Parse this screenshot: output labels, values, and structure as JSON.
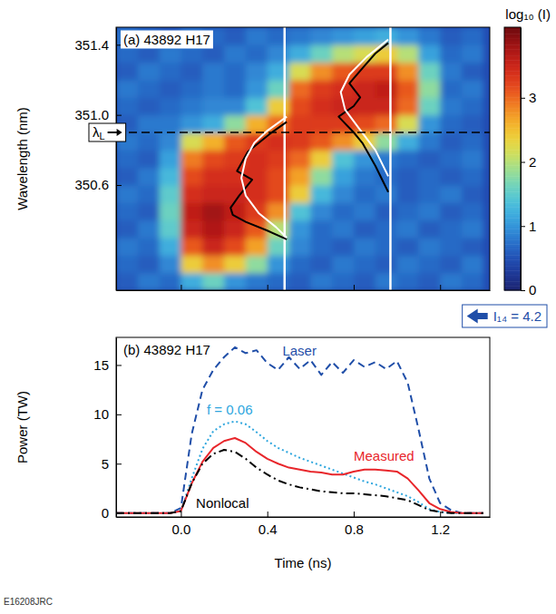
{
  "chart_data": [
    {
      "type": "heatmap",
      "title": "(a) 43892 H17",
      "ylabel": "Wavelength (nm)",
      "xlim": [
        -0.3,
        1.43
      ],
      "xticks": [
        0,
        0.4,
        0.8,
        1.2
      ],
      "ylim": [
        350.0,
        351.5
      ],
      "yticks": [
        350.6,
        {
          "value": 351,
          "label": "351.0"
        },
        351.4
      ],
      "tick_labels": "y",
      "x": [
        -0.25,
        -0.15,
        -0.05,
        0.05,
        0.15,
        0.25,
        0.35,
        0.45,
        0.55,
        0.65,
        0.75,
        0.85,
        0.95,
        1.05,
        1.15,
        1.25,
        1.35
      ],
      "y": [
        350.05,
        350.15,
        350.25,
        350.35,
        350.45,
        350.55,
        350.65,
        350.75,
        350.85,
        350.95,
        351.05,
        351.15,
        351.25,
        351.35,
        351.45
      ],
      "z": [
        [
          0.6,
          0.8,
          0.7,
          1.2,
          1.6,
          1.0,
          0.8,
          0.7,
          0.6,
          0.8,
          0.7,
          0.6,
          0.8,
          0.7,
          0.6,
          0.8,
          0.7
        ],
        [
          0.7,
          0.6,
          0.9,
          2.4,
          2.8,
          2.4,
          1.8,
          1.0,
          0.7,
          0.6,
          0.8,
          0.7,
          0.6,
          0.8,
          0.7,
          0.6,
          0.8
        ],
        [
          0.8,
          0.7,
          1.2,
          3.1,
          3.5,
          3.2,
          2.7,
          1.6,
          0.9,
          0.7,
          0.6,
          0.8,
          0.7,
          0.6,
          0.8,
          0.7,
          0.6
        ],
        [
          0.6,
          0.8,
          1.5,
          3.5,
          3.7,
          3.5,
          3.1,
          2.0,
          1.0,
          0.7,
          0.8,
          0.6,
          0.7,
          0.8,
          0.6,
          0.7,
          0.8
        ],
        [
          0.7,
          0.6,
          1.6,
          3.6,
          3.8,
          3.6,
          3.3,
          2.8,
          1.4,
          0.9,
          0.7,
          0.8,
          0.6,
          0.7,
          0.8,
          0.6,
          0.7
        ],
        [
          0.8,
          0.7,
          1.5,
          3.4,
          3.5,
          3.5,
          3.4,
          3.2,
          2.4,
          1.3,
          0.9,
          0.7,
          0.8,
          0.6,
          0.7,
          0.8,
          0.6
        ],
        [
          0.6,
          0.8,
          1.3,
          3.2,
          3.4,
          3.4,
          3.4,
          3.2,
          2.7,
          1.8,
          1.1,
          0.8,
          0.7,
          0.6,
          0.7,
          0.6,
          0.7
        ],
        [
          0.7,
          0.6,
          1.1,
          2.9,
          3.2,
          3.3,
          3.4,
          3.3,
          3.0,
          2.4,
          1.4,
          1.0,
          0.8,
          0.7,
          0.6,
          0.7,
          0.8
        ],
        [
          0.8,
          0.7,
          0.9,
          2.2,
          2.6,
          3.1,
          3.3,
          3.4,
          3.3,
          3.1,
          2.8,
          2.4,
          1.8,
          1.2,
          0.8,
          0.6,
          0.7
        ],
        [
          0.6,
          0.8,
          0.8,
          1.0,
          1.2,
          1.8,
          2.6,
          3.0,
          3.3,
          3.3,
          3.3,
          3.2,
          3.0,
          2.2,
          1.0,
          0.7,
          0.6
        ],
        [
          0.7,
          0.6,
          0.7,
          0.8,
          0.9,
          0.9,
          1.4,
          2.4,
          3.2,
          3.4,
          3.5,
          3.5,
          3.5,
          3.0,
          1.6,
          0.8,
          0.7
        ],
        [
          0.8,
          0.7,
          0.6,
          0.7,
          0.8,
          0.7,
          1.0,
          1.6,
          3.0,
          3.3,
          3.4,
          3.5,
          3.6,
          3.1,
          1.8,
          0.7,
          0.8
        ],
        [
          0.6,
          0.8,
          0.7,
          0.6,
          0.8,
          0.7,
          0.9,
          1.2,
          2.2,
          2.8,
          3.1,
          3.3,
          3.3,
          2.8,
          1.6,
          0.8,
          0.6
        ],
        [
          0.7,
          0.6,
          0.8,
          0.7,
          0.6,
          0.8,
          0.7,
          0.9,
          1.2,
          1.6,
          2.0,
          2.2,
          2.4,
          2.0,
          1.1,
          0.7,
          0.8
        ],
        [
          0.8,
          0.7,
          0.6,
          0.8,
          0.7,
          0.6,
          0.8,
          0.7,
          0.8,
          0.9,
          1.0,
          1.1,
          1.2,
          1.0,
          0.8,
          0.6,
          0.7
        ]
      ],
      "colorbar": {
        "label": "log₁₀ (I)",
        "range": [
          0,
          4.1
        ],
        "ticks": [
          0,
          1,
          2,
          3
        ]
      },
      "reference_line": {
        "label": "λL",
        "value": 350.9
      },
      "lineouts": {
        "times": [
          0.48,
          0.97
        ],
        "curves": [
          {
            "color": "black",
            "x": [
              0.49,
              0.4,
              0.3,
              0.24,
              0.23,
              0.27,
              0.33,
              0.26,
              0.31,
              0.41,
              0.49
            ],
            "y": [
              350.29,
              350.34,
              350.39,
              350.43,
              350.47,
              350.54,
              350.63,
              350.68,
              350.79,
              350.89,
              350.96
            ]
          },
          {
            "color": "white",
            "x": [
              0.49,
              0.44,
              0.36,
              0.3,
              0.28,
              0.3,
              0.34,
              0.4,
              0.49
            ],
            "y": [
              350.3,
              350.36,
              350.44,
              350.54,
              350.64,
              350.75,
              350.84,
              350.91,
              350.99
            ]
          },
          {
            "color": "black",
            "x": [
              0.96,
              0.9,
              0.84,
              0.8,
              0.73,
              0.8,
              0.83,
              0.78,
              0.85,
              0.9,
              0.96
            ],
            "y": [
              350.56,
              350.71,
              350.84,
              350.9,
              350.99,
              351.05,
              351.1,
              351.18,
              351.28,
              351.35,
              351.41
            ]
          },
          {
            "color": "white",
            "x": [
              0.96,
              0.9,
              0.82,
              0.76,
              0.74,
              0.78,
              0.86,
              0.96
            ],
            "y": [
              350.65,
              350.8,
              350.93,
              351.03,
              351.13,
              351.23,
              351.33,
              351.43
            ]
          }
        ]
      }
    },
    {
      "type": "line",
      "title": "(b) 43892 H17",
      "xlabel": "Time (ns)",
      "ylabel": "Power (TW)",
      "xlim": [
        -0.3,
        1.43
      ],
      "xticks": [
        {
          "value": 0,
          "label": "0.0"
        },
        0.4,
        0.8,
        1.2
      ],
      "ylim": [
        -0.4,
        17.8
      ],
      "yticks": [
        0,
        5,
        10,
        15
      ],
      "annotation": "I₁₄ = 4.2",
      "x": [
        -0.3,
        -0.25,
        -0.2,
        -0.15,
        -0.1,
        -0.05,
        0,
        0.05,
        0.1,
        0.15,
        0.2,
        0.25,
        0.3,
        0.35,
        0.4,
        0.45,
        0.5,
        0.55,
        0.6,
        0.65,
        0.7,
        0.75,
        0.8,
        0.85,
        0.9,
        0.95,
        1.0,
        1.05,
        1.1,
        1.15,
        1.2,
        1.25,
        1.3,
        1.35,
        1.4
      ],
      "series": [
        {
          "name": "Laser",
          "color": "#1f4ea8",
          "line_style": "dashed",
          "values": [
            0,
            0,
            0,
            0,
            0,
            0,
            0.5,
            8,
            12.5,
            14.5,
            15.8,
            16.8,
            16.2,
            16.5,
            15.2,
            14.5,
            15.8,
            14.6,
            15.5,
            14.0,
            15.3,
            14.2,
            15.5,
            14.8,
            15.3,
            14.6,
            15.4,
            13.2,
            8.5,
            3.5,
            1.0,
            0.3,
            0,
            0,
            0
          ]
        },
        {
          "name": "f = 0.06",
          "color": "#2ea6de",
          "line_style": "dotted",
          "values": [
            0,
            0,
            0,
            0,
            0,
            0,
            0.2,
            3.5,
            6.5,
            8.3,
            9.0,
            9.3,
            9.0,
            8.2,
            7.3,
            6.6,
            6.1,
            5.6,
            5.2,
            4.8,
            4.4,
            4.0,
            3.6,
            3.2,
            2.9,
            2.5,
            2.1,
            1.7,
            1.1,
            0.4,
            0.1,
            0,
            0,
            0,
            0
          ]
        },
        {
          "name": "Measured",
          "color": "#e8262b",
          "line_style": "solid",
          "values": [
            0,
            0,
            0,
            0,
            0,
            0,
            0.2,
            3.0,
            5.2,
            6.6,
            7.3,
            7.6,
            7.1,
            6.2,
            5.5,
            5.0,
            4.6,
            4.4,
            4.2,
            4.1,
            3.9,
            3.9,
            4.2,
            4.4,
            4.4,
            4.3,
            4.2,
            3.5,
            2.3,
            1.0,
            0.4,
            0.1,
            0,
            0,
            0
          ]
        },
        {
          "name": "Nonlocal",
          "color": "#000000",
          "line_style": "dashdot",
          "values": [
            0,
            0,
            0,
            0,
            0,
            0,
            0.2,
            3.0,
            5.0,
            6.0,
            6.4,
            6.2,
            5.5,
            4.6,
            3.9,
            3.3,
            2.9,
            2.6,
            2.4,
            2.2,
            2.1,
            2.0,
            2.0,
            1.9,
            1.8,
            1.7,
            1.5,
            1.3,
            0.8,
            0.3,
            0.1,
            0,
            0,
            0,
            0
          ]
        }
      ]
    }
  ],
  "footer": "E16208JRC"
}
